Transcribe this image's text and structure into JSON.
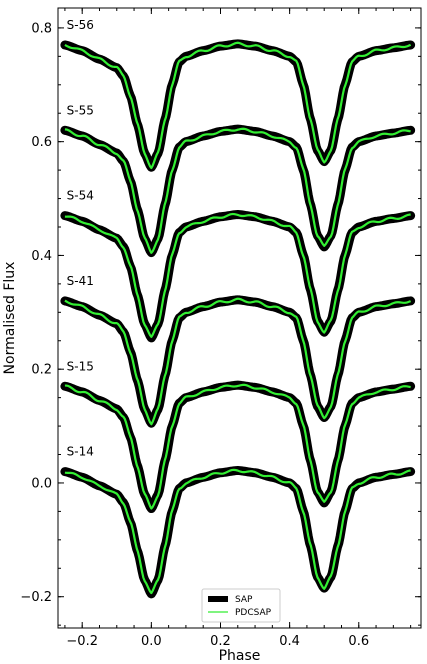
{
  "chart_data": {
    "type": "line",
    "title": "",
    "xlabel": "Phase",
    "ylabel": "Normalised Flux",
    "xlim": [
      -0.27,
      0.78
    ],
    "ylim": [
      -0.255,
      0.835
    ],
    "xticks": [
      -0.2,
      0.0,
      0.2,
      0.4,
      0.6
    ],
    "xtick_labels": [
      "−0.2",
      "0.0",
      "0.2",
      "0.4",
      "0.6"
    ],
    "yticks": [
      -0.2,
      0.0,
      0.2,
      0.4,
      0.6,
      0.8
    ],
    "ytick_labels": [
      "−0.2",
      "0.0",
      "0.2",
      "0.4",
      "0.6",
      "0.8"
    ],
    "x_minor_step": 0.05,
    "y_minor_step": 0.05,
    "grid": false,
    "legend_position": "bottom-center",
    "legend": [
      {
        "label": "SAP",
        "color": "#000000",
        "style": "thick"
      },
      {
        "label": "PDCSAP",
        "color": "#33ee33",
        "style": "thin"
      }
    ],
    "phase_range": [
      -0.25,
      0.75
    ],
    "offsets": [
      {
        "label": "S-56",
        "offset": 0.75
      },
      {
        "label": "S-55",
        "offset": 0.6
      },
      {
        "label": "S-54",
        "offset": 0.45
      },
      {
        "label": "S-41",
        "offset": 0.3
      },
      {
        "label": "S-15",
        "offset": 0.15
      },
      {
        "label": "S-14",
        "offset": 0.0
      }
    ],
    "series": [
      {
        "name": "SAP",
        "color": "#000000"
      },
      {
        "name": "PDCSAP",
        "color": "#33ee33"
      }
    ],
    "base_curve": {
      "x": [
        -0.25,
        -0.2,
        -0.15,
        -0.1,
        -0.08,
        -0.06,
        -0.04,
        -0.02,
        0.0,
        0.02,
        0.04,
        0.06,
        0.08,
        0.1,
        0.15,
        0.2,
        0.25,
        0.3,
        0.35,
        0.4,
        0.42,
        0.44,
        0.46,
        0.48,
        0.5,
        0.52,
        0.54,
        0.56,
        0.58,
        0.6,
        0.65,
        0.7,
        0.75
      ],
      "y": [
        0.02,
        0.01,
        -0.005,
        -0.02,
        -0.035,
        -0.07,
        -0.12,
        -0.17,
        -0.195,
        -0.17,
        -0.11,
        -0.05,
        -0.01,
        0.0,
        0.01,
        0.018,
        0.022,
        0.018,
        0.01,
        0.0,
        -0.01,
        -0.05,
        -0.11,
        -0.165,
        -0.185,
        -0.165,
        -0.11,
        -0.05,
        -0.01,
        0.0,
        0.01,
        0.015,
        0.02
      ]
    }
  }
}
